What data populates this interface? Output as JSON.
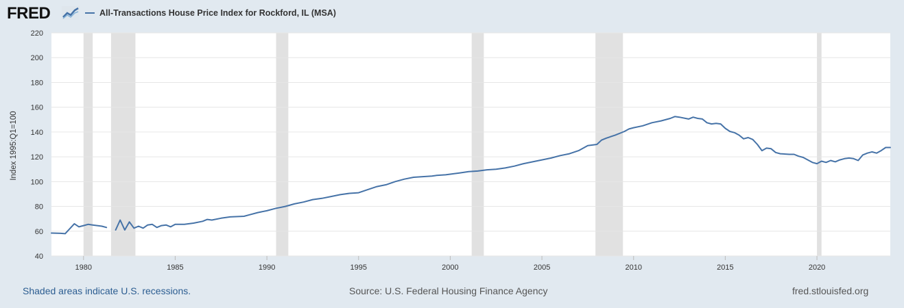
{
  "header": {
    "logo_text": "FRED",
    "legend_label": "All-Transactions House Price Index for Rockford, IL (MSA)"
  },
  "footer": {
    "recession_note": "Shaded areas indicate U.S. recessions.",
    "source": "Source: U.S. Federal Housing Finance Agency",
    "site": "fred.stlouisfed.org"
  },
  "colors": {
    "line": "#4572a7",
    "recession": "#e1e1e1",
    "grid": "#e6e6e6",
    "background": "#e1e9f0",
    "plot": "#ffffff",
    "logo_icon": "chart-line-icon"
  },
  "chart_data": {
    "type": "line",
    "title": "",
    "xlabel": "",
    "ylabel": "Index 1995:Q1=100",
    "xlim": [
      1978.25,
      2024.0
    ],
    "ylim": [
      40,
      220
    ],
    "yticks": [
      40,
      60,
      80,
      100,
      120,
      140,
      160,
      180,
      200,
      220
    ],
    "xticks": [
      1980,
      1985,
      1990,
      1995,
      2000,
      2005,
      2010,
      2015,
      2020
    ],
    "grid": true,
    "legend": "top-left",
    "recessions": [
      [
        1980.0,
        1980.5
      ],
      [
        1981.5,
        1982.83
      ],
      [
        1990.5,
        1991.17
      ],
      [
        2001.17,
        2001.83
      ],
      [
        2007.92,
        2009.42
      ],
      [
        2020.0,
        2020.25
      ]
    ],
    "series": [
      {
        "name": "All-Transactions House Price Index for Rockford, IL (MSA)",
        "segments": [
          [
            [
              1978.25,
              58.5
            ],
            [
              1978.75,
              58.3
            ],
            [
              1979.0,
              58.0
            ],
            [
              1979.5,
              66.0
            ],
            [
              1979.75,
              63.5
            ],
            [
              1980.0,
              64.5
            ],
            [
              1980.25,
              65.5
            ],
            [
              1980.5,
              65.0
            ],
            [
              1980.75,
              64.5
            ],
            [
              1981.0,
              64.0
            ],
            [
              1981.25,
              63.0
            ]
          ],
          [
            [
              1981.75,
              61.0
            ],
            [
              1982.0,
              69.0
            ],
            [
              1982.25,
              61.0
            ],
            [
              1982.5,
              67.5
            ],
            [
              1982.75,
              62.5
            ],
            [
              1983.0,
              64.0
            ],
            [
              1983.25,
              62.5
            ],
            [
              1983.5,
              65.0
            ],
            [
              1983.75,
              65.5
            ],
            [
              1984.0,
              63.0
            ],
            [
              1984.25,
              64.5
            ],
            [
              1984.5,
              65.0
            ],
            [
              1984.75,
              63.5
            ],
            [
              1985.0,
              65.5
            ],
            [
              1985.5,
              65.5
            ],
            [
              1986.0,
              66.5
            ],
            [
              1986.5,
              68.0
            ],
            [
              1986.75,
              69.5
            ],
            [
              1987.0,
              69.0
            ],
            [
              1987.5,
              70.5
            ],
            [
              1988.0,
              71.5
            ],
            [
              1988.75,
              72.0
            ],
            [
              1989.0,
              73.0
            ],
            [
              1989.5,
              75.0
            ],
            [
              1990.0,
              76.5
            ],
            [
              1990.5,
              78.5
            ],
            [
              1991.0,
              80.0
            ],
            [
              1991.5,
              82.0
            ],
            [
              1992.0,
              83.5
            ],
            [
              1992.5,
              85.5
            ],
            [
              1993.0,
              86.5
            ],
            [
              1993.5,
              88.0
            ],
            [
              1994.0,
              89.5
            ],
            [
              1994.5,
              90.5
            ],
            [
              1995.0,
              91.0
            ],
            [
              1995.5,
              93.5
            ],
            [
              1996.0,
              96.0
            ],
            [
              1996.5,
              97.5
            ],
            [
              1997.0,
              100.0
            ],
            [
              1997.5,
              102.0
            ],
            [
              1998.0,
              103.5
            ],
            [
              1998.5,
              104.0
            ],
            [
              1999.0,
              104.5
            ],
            [
              1999.25,
              105.0
            ],
            [
              1999.75,
              105.5
            ],
            [
              2000.0,
              106.0
            ],
            [
              2000.5,
              107.0
            ],
            [
              2001.0,
              108.0
            ],
            [
              2001.5,
              108.5
            ],
            [
              2002.0,
              109.5
            ],
            [
              2002.5,
              110.0
            ],
            [
              2003.0,
              111.0
            ],
            [
              2003.5,
              112.5
            ],
            [
              2004.0,
              114.5
            ],
            [
              2004.5,
              116.0
            ],
            [
              2005.0,
              117.5
            ],
            [
              2005.5,
              119.0
            ],
            [
              2006.0,
              121.0
            ],
            [
              2006.5,
              122.5
            ],
            [
              2007.0,
              125.0
            ],
            [
              2007.5,
              129.0
            ],
            [
              2008.0,
              130.0
            ],
            [
              2008.25,
              133.5
            ],
            [
              2008.5,
              135.0
            ],
            [
              2009.0,
              137.5
            ],
            [
              2009.5,
              140.5
            ],
            [
              2009.75,
              142.5
            ],
            [
              2010.0,
              143.5
            ],
            [
              2010.5,
              145.0
            ],
            [
              2011.0,
              147.5
            ],
            [
              2011.5,
              149.0
            ],
            [
              2012.0,
              151.0
            ],
            [
              2012.25,
              152.5
            ],
            [
              2012.5,
              152.0
            ],
            [
              2013.0,
              150.5
            ],
            [
              2013.25,
              152.0
            ],
            [
              2013.5,
              151.0
            ],
            [
              2013.75,
              150.5
            ],
            [
              2014.0,
              147.5
            ],
            [
              2014.25,
              146.5
            ],
            [
              2014.5,
              147.0
            ],
            [
              2014.75,
              146.5
            ],
            [
              2015.0,
              143.0
            ],
            [
              2015.25,
              140.5
            ],
            [
              2015.5,
              139.5
            ],
            [
              2015.75,
              137.5
            ],
            [
              2016.0,
              134.5
            ],
            [
              2016.25,
              135.5
            ],
            [
              2016.5,
              134.0
            ],
            [
              2016.75,
              130.0
            ],
            [
              2017.0,
              125.0
            ],
            [
              2017.25,
              127.0
            ],
            [
              2017.5,
              126.5
            ],
            [
              2017.75,
              123.5
            ],
            [
              2018.0,
              122.5
            ],
            [
              2018.5,
              122.0
            ],
            [
              2018.75,
              122.0
            ],
            [
              2019.0,
              120.5
            ],
            [
              2019.25,
              119.5
            ],
            [
              2019.5,
              117.5
            ],
            [
              2019.75,
              115.5
            ],
            [
              2020.0,
              114.5
            ],
            [
              2020.25,
              116.5
            ],
            [
              2020.5,
              115.5
            ],
            [
              2020.75,
              117.0
            ],
            [
              2021.0,
              116.0
            ],
            [
              2021.25,
              117.5
            ],
            [
              2021.5,
              118.5
            ],
            [
              2021.75,
              119.0
            ],
            [
              2022.0,
              118.5
            ],
            [
              2022.25,
              117.0
            ],
            [
              2022.5,
              121.5
            ],
            [
              2022.75,
              123.0
            ],
            [
              2023.0,
              124.0
            ],
            [
              2023.25,
              123.0
            ],
            [
              2023.5,
              125.0
            ],
            [
              2023.75,
              127.5
            ],
            [
              2024.0,
              127.5
            ]
          ]
        ]
      }
    ]
  }
}
